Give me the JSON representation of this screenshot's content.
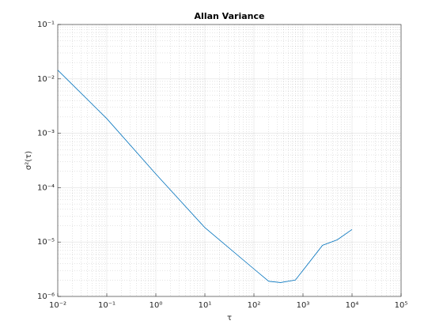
{
  "chart_data": {
    "type": "line",
    "title": "Allan Variance",
    "x_label": "τ",
    "y_label": "σ²(τ)",
    "x": [
      0.01,
      0.1,
      1,
      10,
      100,
      200,
      350,
      700,
      2500,
      5000,
      10000
    ],
    "series": [
      {
        "color": "#0072bd",
        "values": [
          0.0145,
          0.00186,
          0.000178,
          1.84e-05,
          3.2e-06,
          1.9e-06,
          1.8e-06,
          2e-06,
          8.7e-06,
          1.1e-05,
          1.7e-05
        ]
      }
    ],
    "xscale": "log",
    "yscale": "log",
    "grid": true,
    "minor_grid": true,
    "xlim": [
      0.01,
      100000
    ],
    "ylim": [
      1e-06,
      0.1
    ],
    "xticks": [
      {
        "value": 0.01,
        "label": "10⁻²"
      },
      {
        "value": 0.1,
        "label": "10⁻¹"
      },
      {
        "value": 1,
        "label": "10⁰"
      },
      {
        "value": 10,
        "label": "10¹"
      },
      {
        "value": 100,
        "label": "10²"
      },
      {
        "value": 1000,
        "label": "10³"
      },
      {
        "value": 10000,
        "label": "10⁴"
      },
      {
        "value": 100000,
        "label": "10⁵"
      }
    ],
    "yticks": [
      {
        "value": 1e-06,
        "label": "10⁻⁶"
      },
      {
        "value": 1e-05,
        "label": "10⁻⁵"
      },
      {
        "value": 0.0001,
        "label": "10⁻⁴"
      },
      {
        "value": 0.001,
        "label": "10⁻³"
      },
      {
        "value": 0.01,
        "label": "10⁻²"
      },
      {
        "value": 0.1,
        "label": "10⁻¹"
      }
    ]
  }
}
